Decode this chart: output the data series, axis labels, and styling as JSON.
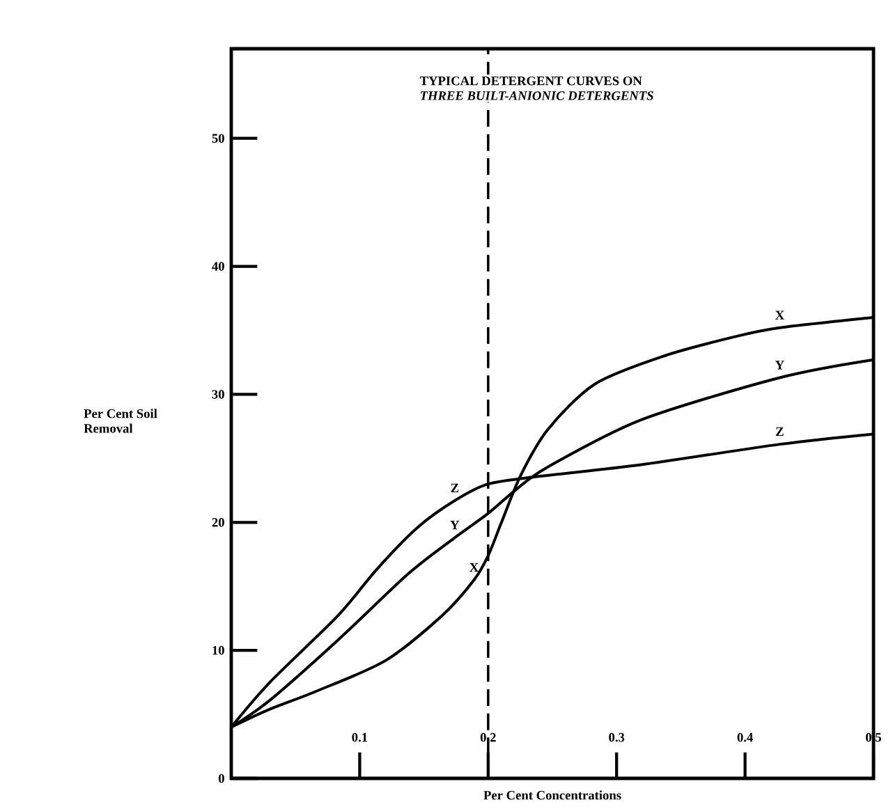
{
  "chart_data": {
    "type": "line",
    "title": "TYPICAL DETERGENT CURVES ON",
    "subtitle": "*THREE BUILT-ANIONIC DETERGENTS*",
    "xlabel": "Per Cent Concentrations",
    "ylabel": "Per Cent Soil Removal",
    "xlim": [
      0,
      0.5
    ],
    "ylim": [
      0,
      57
    ],
    "xticks": [
      0.1,
      0.2,
      0.3,
      0.4,
      0.5
    ],
    "yticks": [
      0,
      10,
      20,
      30,
      40,
      50
    ],
    "grid": false,
    "marker": "none",
    "line_style": "solid",
    "series": [
      {
        "color": "#000000",
        "x": [
          0,
          0.03,
          0.066,
          0.12,
          0.164,
          0.189,
          0.2,
          0.21,
          0.225,
          0.246,
          0.283,
          0.337,
          0.392,
          0.427,
          0.5
        ],
        "values": [
          4.0,
          5.4,
          6.8,
          9.2,
          12.7,
          15.5,
          17.4,
          19.9,
          23.6,
          27.2,
          30.8,
          33.0,
          34.5,
          35.2,
          36.0
        ]
      },
      {
        "color": "#000000",
        "x": [
          0,
          0.03,
          0.083,
          0.138,
          0.174,
          0.2,
          0.221,
          0.246,
          0.319,
          0.427,
          0.5
        ],
        "values": [
          4.0,
          6.1,
          10.8,
          16.0,
          18.8,
          20.7,
          22.5,
          24.3,
          28.0,
          31.3,
          32.7
        ]
      },
      {
        "color": "#000000",
        "x": [
          0,
          0.03,
          0.083,
          0.113,
          0.145,
          0.174,
          0.2,
          0.24,
          0.319,
          0.427,
          0.5
        ],
        "values": [
          4.0,
          7.5,
          12.7,
          16.3,
          19.6,
          21.7,
          23.0,
          23.6,
          24.5,
          26.1,
          26.9
        ]
      }
    ],
    "ref_lines": [
      {
        "axis": "x",
        "value": 0.2,
        "line_style": "dashed",
        "color": "#000000"
      }
    ],
    "annotations": [
      {
        "text": "X",
        "x": 0.427,
        "y": 35.2
      },
      {
        "text": "Y",
        "x": 0.427,
        "y": 31.3
      },
      {
        "text": "Z",
        "x": 0.427,
        "y": 26.1
      },
      {
        "text": "Z",
        "x": 0.174,
        "y": 21.7
      },
      {
        "text": "Y",
        "x": 0.174,
        "y": 18.8
      },
      {
        "text": "X",
        "x": 0.189,
        "y": 15.5
      }
    ]
  }
}
